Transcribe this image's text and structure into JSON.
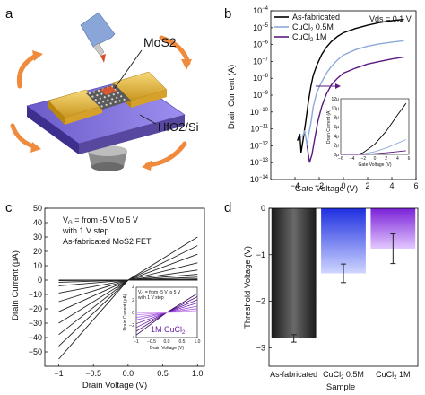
{
  "panels": {
    "a": {
      "letter": "a",
      "labels": [
        "MoS2",
        "HfO2/Si"
      ]
    },
    "b": {
      "letter": "b"
    },
    "c": {
      "letter": "c"
    },
    "d": {
      "letter": "d"
    }
  },
  "chart_data": [
    {
      "type": "line",
      "panel": "b",
      "xlabel": "Gate Voltage (V)",
      "ylabel": "Drain Current (A)",
      "xlim": [
        -6,
        6
      ],
      "ylim": [
        1e-14,
        0.0001
      ],
      "yscale": "log",
      "xticks": [
        -4,
        -2,
        0,
        2,
        4,
        6
      ],
      "yticks": [
        "10^-4",
        "10^-5",
        "10^-6",
        "10^-7",
        "10^-8",
        "10^-9",
        "10^-10",
        "10^-11",
        "10^-12",
        "10^-13",
        "10^-14"
      ],
      "annotation": "Vds = 0.1 V",
      "legend_position": "top-left",
      "series": [
        {
          "name": "As-fabricated",
          "color": "#000000",
          "x": [
            -3.8,
            -3.6,
            -3.5,
            -3.3,
            -3.1,
            -2.9,
            -2.7,
            -2.5,
            -2.2,
            -1.8,
            -1.4,
            -1.0,
            -0.5,
            0,
            1,
            2,
            3,
            4,
            5
          ],
          "y": [
            2e-12,
            5e-12,
            4e-13,
            3e-12,
            3e-11,
            4e-10,
            3e-09,
            1.5e-08,
            6e-08,
            2.5e-07,
            7e-07,
            1.5e-06,
            3e-06,
            5e-06,
            9e-06,
            1.4e-05,
            2e-05,
            2.6e-05,
            3.1e-05
          ]
        },
        {
          "name": "CuCl2 0.5M",
          "color": "#8fa9d6",
          "x": [
            -3.4,
            -3.2,
            -3.0,
            -2.9,
            -2.7,
            -2.5,
            -2.2,
            -1.8,
            -1.4,
            -1.0,
            -0.5,
            0,
            1,
            2,
            3,
            4,
            5
          ],
          "y": [
            3e-12,
            8e-12,
            1e-12,
            4e-12,
            2e-11,
            2e-10,
            1.5e-09,
            6e-09,
            2e-08,
            5e-08,
            1.2e-07,
            2.4e-07,
            5e-07,
            8e-07,
            1.1e-06,
            1.4e-06,
            1.7e-06
          ]
        },
        {
          "name": "CuCl2 1M",
          "color": "#5a1a80",
          "x": [
            -3.0,
            -2.8,
            -2.6,
            -2.4,
            -2.1,
            -1.8,
            -1.4,
            -1.0,
            -0.5,
            0,
            1,
            2,
            3,
            4,
            5
          ],
          "y": [
            1e-12,
            1e-13,
            3e-13,
            2e-12,
            3e-11,
            2e-10,
            1.2e-09,
            4e-09,
            1e-08,
            2e-08,
            4e-08,
            7e-08,
            1e-07,
            1.4e-07,
            1.8e-07
          ]
        }
      ],
      "inset": {
        "xlabel": "Gate Voltage (V)",
        "ylabel": "Drain Current (A)",
        "xlim": [
          -6,
          6
        ],
        "ylim": [
          0,
          12
        ],
        "xticks": [
          -6,
          -4,
          -2,
          0,
          2,
          4,
          6
        ],
        "yticks": [
          0,
          2,
          4,
          6,
          8,
          10,
          12
        ],
        "ytick_suffix": "μ",
        "series": [
          {
            "name": "As-fabricated",
            "color": "#000000",
            "x": [
              -6,
              -3,
              -2,
              0,
              2,
              4,
              5.5
            ],
            "y": [
              0,
              0,
              0.4,
              2.2,
              5,
              8.5,
              11
            ]
          },
          {
            "name": "CuCl2 0.5M",
            "color": "#8fa9d6",
            "x": [
              -6,
              -3,
              -2,
              0,
              2,
              4,
              5.5
            ],
            "y": [
              0,
              0,
              0.1,
              0.6,
              1.4,
              2.4,
              3.2
            ]
          },
          {
            "name": "CuCl2 1M",
            "color": "#5a1a80",
            "x": [
              -6,
              -3,
              -2,
              0,
              2,
              4,
              5.5
            ],
            "y": [
              0,
              0,
              0,
              0.15,
              0.35,
              0.6,
              0.8
            ]
          }
        ]
      }
    },
    {
      "type": "line",
      "panel": "c",
      "xlabel": "Drain Voltage (V)",
      "ylabel": "Drain Current (μA)",
      "xlim": [
        -1.2,
        1.1
      ],
      "ylim": [
        -60,
        50
      ],
      "xticks": [
        -1.0,
        -0.5,
        0.0,
        0.5,
        1.0
      ],
      "yticks": [
        -50,
        -40,
        -30,
        -20,
        -10,
        0,
        10,
        20,
        30,
        40,
        50
      ],
      "annotation": [
        "V_G = from -5 V to 5 V",
        "with 1 V step",
        "As-fabricated MoS2 FET"
      ],
      "curves": {
        "x": [
          -1.0,
          0,
          1.0
        ],
        "end_values_neg": [
          -55,
          -46,
          -38,
          -30,
          -22,
          -15,
          -9,
          -4,
          -1.5,
          -0.3,
          0
        ],
        "end_values_pos": [
          30,
          24,
          18,
          12,
          7,
          4,
          2,
          0.8,
          0.3,
          0.1,
          0
        ]
      },
      "inset": {
        "xlabel": "Drain Voltage (V)",
        "ylabel": "Drain Current (μA)",
        "annotation": [
          "V_G = from -5 V to 5 V",
          "with 1 V step"
        ],
        "label": "1M CuCl2",
        "xlim": [
          -1.0,
          1.0
        ],
        "ylim": [
          -4,
          4
        ],
        "xticks": [
          -1.0,
          -0.5,
          0.0,
          0.5,
          1.0
        ],
        "yticks": [
          -4,
          -2,
          0,
          2,
          4
        ],
        "end_values_neg": [
          -3.6,
          -3.0,
          -2.4,
          -1.8,
          -1.2,
          -0.8,
          -0.4,
          -0.1
        ],
        "end_values_pos": [
          3.0,
          2.5,
          2.0,
          1.5,
          1.0,
          0.6,
          0.3,
          0.1
        ]
      }
    },
    {
      "type": "bar",
      "panel": "d",
      "xlabel": "Sample",
      "ylabel": "Threshold Voltage (V)",
      "categories": [
        "As-fabricated",
        "CuCl2 0.5M",
        "CuCl2 1M"
      ],
      "values": [
        -2.8,
        -1.4,
        -0.87
      ],
      "errors": [
        0.08,
        0.2,
        0.32
      ],
      "colors": [
        "#2a2a2a",
        "#2c40e0",
        "#8a3ad8"
      ],
      "ylim": [
        -3.4,
        0
      ],
      "yticks": [
        0,
        -1,
        -2,
        -3
      ]
    }
  ]
}
